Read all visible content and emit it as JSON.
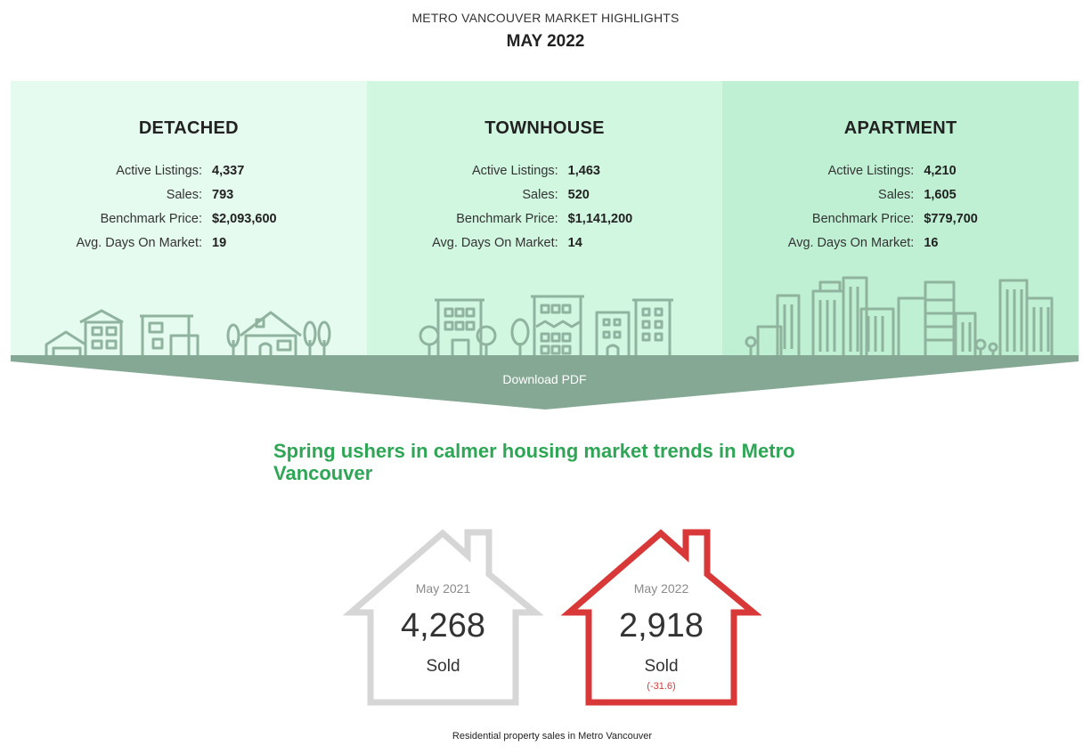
{
  "header": {
    "subtitle": "METRO VANCOUVER MARKET HIGHLIGHTS",
    "title": "MAY 2022"
  },
  "panels": [
    {
      "title": "DETACHED",
      "stats": [
        {
          "label": "Active Listings:",
          "value": "4,337"
        },
        {
          "label": "Sales:",
          "value": "793"
        },
        {
          "label": "Benchmark Price:",
          "value": "$2,093,600"
        },
        {
          "label": "Avg. Days On Market:",
          "value": "19"
        }
      ],
      "icon": "houses-skyline-icon"
    },
    {
      "title": "TOWNHOUSE",
      "stats": [
        {
          "label": "Active Listings:",
          "value": "1,463"
        },
        {
          "label": "Sales:",
          "value": "520"
        },
        {
          "label": "Benchmark Price:",
          "value": "$1,141,200"
        },
        {
          "label": "Avg. Days On Market:",
          "value": "14"
        }
      ],
      "icon": "townhouse-skyline-icon"
    },
    {
      "title": "APARTMENT",
      "stats": [
        {
          "label": "Active Listings:",
          "value": "4,210"
        },
        {
          "label": "Sales:",
          "value": "1,605"
        },
        {
          "label": "Benchmark Price:",
          "value": "$779,700"
        },
        {
          "label": "Avg. Days On Market:",
          "value": "16"
        }
      ],
      "icon": "apartment-skyline-icon"
    }
  ],
  "download": {
    "label": "Download PDF"
  },
  "headline": "Spring ushers in calmer housing market trends in Metro Vancouver",
  "comparison": [
    {
      "period": "May 2021",
      "value": "4,268",
      "label": "Sold",
      "change": ""
    },
    {
      "period": "May 2022",
      "value": "2,918",
      "label": "Sold",
      "change": "(-31.6)"
    }
  ],
  "caption": "Residential property sales in Metro Vancouver",
  "colors": {
    "accent": "#2ea655",
    "banner": "#84a893",
    "panel1": "#e6fbef",
    "panel2": "#d2f7e1",
    "panel3": "#bff0d3",
    "line_art": "#8fb39e",
    "house_gray": "#d6d6d6",
    "house_red": "#d93838"
  }
}
